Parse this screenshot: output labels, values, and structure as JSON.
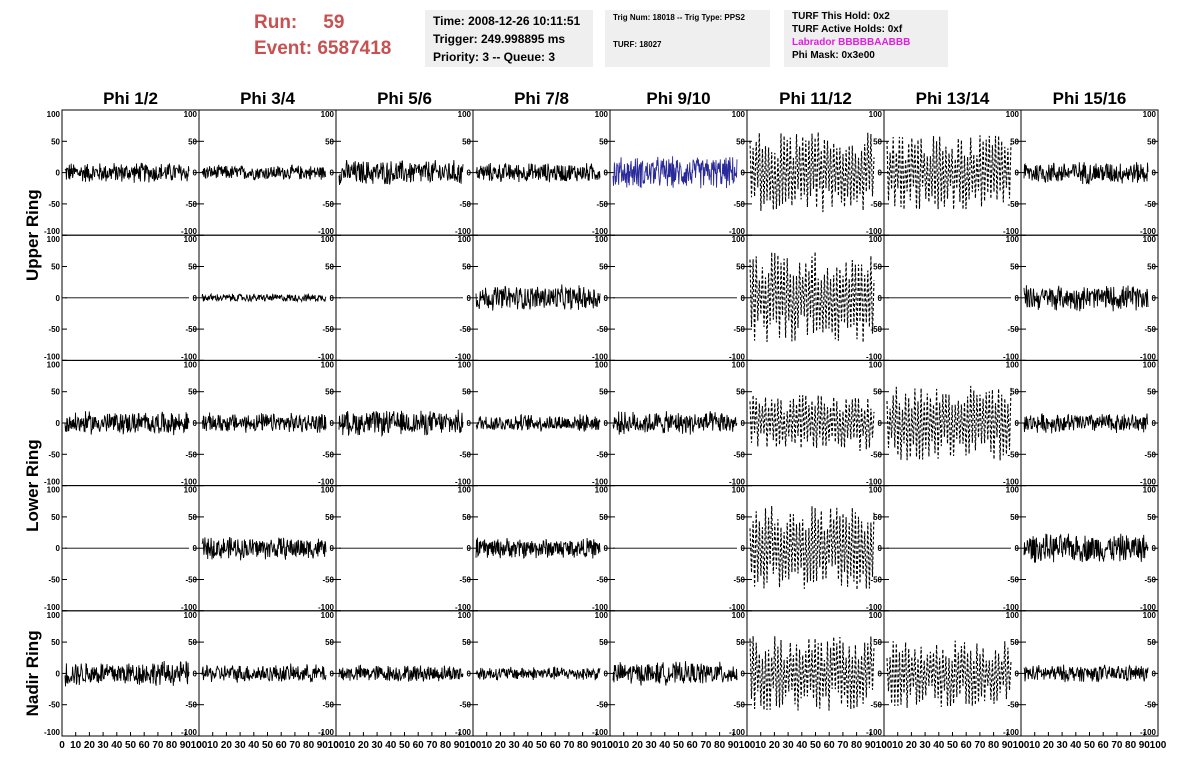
{
  "header": {
    "run_label": "Run:",
    "run_value": "59",
    "event_label": "Event:",
    "event_value": "6587418"
  },
  "time_box": {
    "time": "Time: 2008-12-26 10:11:51",
    "trigger": "Trigger: 249.998895 ms",
    "priority": "Priority: 3 -- Queue: 3"
  },
  "trig_box": {
    "trig": "Trig Num: 18018 -- Trig Type: PPS2",
    "turf": "TURF: 18027"
  },
  "turf_box": {
    "this_hold": "TURF This Hold: 0x2",
    "active_holds": "TURF Active Holds: 0xf",
    "labrador": "Labrador BBBBBAABBB",
    "phi_mask": "Phi Mask: 0x3e00"
  },
  "chart_data": {
    "type": "line",
    "columns": [
      "Phi 1/2",
      "Phi 3/4",
      "Phi 5/6",
      "Phi 7/8",
      "Phi 9/10",
      "Phi 11/12",
      "Phi 13/14",
      "Phi 15/16"
    ],
    "ring_labels": [
      {
        "label": "Upper Ring",
        "rows": [
          0,
          1
        ]
      },
      {
        "label": "Lower Ring",
        "rows": [
          2,
          3
        ]
      },
      {
        "label": "Nadir Ring",
        "rows": [
          4
        ]
      }
    ],
    "ylim": [
      -100,
      100
    ],
    "y_ticks": [
      "100",
      "50",
      "0",
      "-50",
      "-100"
    ],
    "xlim": [
      0,
      100
    ],
    "x_ticks": [
      "0",
      "10",
      "20",
      "30",
      "40",
      "50",
      "60",
      "70",
      "80",
      "90",
      "100"
    ],
    "colors": {
      "normal": "#000000",
      "highlight": "#2a2a9a"
    },
    "traces": [
      [
        {
          "amp": 18,
          "style": "solid"
        },
        {
          "amp": 13,
          "style": "solid"
        },
        {
          "amp": 22,
          "style": "solid"
        },
        {
          "amp": 17,
          "style": "solid"
        },
        {
          "amp": 28,
          "style": "highlight"
        },
        {
          "amp": 65,
          "style": "dashed"
        },
        {
          "amp": 60,
          "style": "dashed"
        },
        {
          "amp": 20,
          "style": "solid"
        }
      ],
      [
        {
          "amp": 0,
          "style": "solid"
        },
        {
          "amp": 7,
          "style": "solid"
        },
        {
          "amp": 0,
          "style": "solid"
        },
        {
          "amp": 22,
          "style": "solid"
        },
        {
          "amp": 0,
          "style": "solid"
        },
        {
          "amp": 75,
          "style": "dashed"
        },
        {
          "amp": 0,
          "style": "solid"
        },
        {
          "amp": 22,
          "style": "solid"
        }
      ],
      [
        {
          "amp": 20,
          "style": "solid"
        },
        {
          "amp": 17,
          "style": "solid"
        },
        {
          "amp": 22,
          "style": "solid"
        },
        {
          "amp": 15,
          "style": "solid"
        },
        {
          "amp": 20,
          "style": "solid"
        },
        {
          "amp": 45,
          "style": "dashed"
        },
        {
          "amp": 60,
          "style": "dashed"
        },
        {
          "amp": 17,
          "style": "solid"
        }
      ],
      [
        {
          "amp": 0,
          "style": "solid"
        },
        {
          "amp": 20,
          "style": "solid"
        },
        {
          "amp": 0,
          "style": "solid"
        },
        {
          "amp": 18,
          "style": "solid"
        },
        {
          "amp": 0,
          "style": "solid"
        },
        {
          "amp": 68,
          "style": "dashed"
        },
        {
          "amp": 0,
          "style": "solid"
        },
        {
          "amp": 25,
          "style": "solid"
        }
      ],
      [
        {
          "amp": 22,
          "style": "solid"
        },
        {
          "amp": 16,
          "style": "solid"
        },
        {
          "amp": 15,
          "style": "solid"
        },
        {
          "amp": 12,
          "style": "solid"
        },
        {
          "amp": 20,
          "style": "solid"
        },
        {
          "amp": 60,
          "style": "dashed"
        },
        {
          "amp": 55,
          "style": "dashed"
        },
        {
          "amp": 15,
          "style": "solid"
        }
      ]
    ]
  }
}
